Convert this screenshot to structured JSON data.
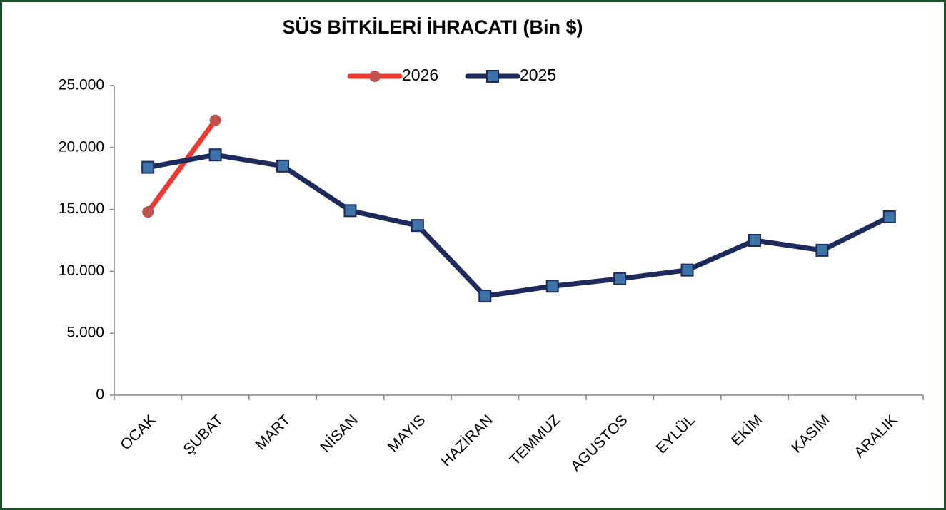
{
  "chart_data": {
    "type": "line",
    "title": "SÜS BİTKİLERİ İHRACATI (Bin $)",
    "categories": [
      "OCAK",
      "ŞUBAT",
      "MART",
      "NİSAN",
      "MAYIS",
      "HAZİRAN",
      "TEMMUZ",
      "AGUSTOS",
      "EYLÜL",
      "EKİM",
      "KASIM",
      "ARALIK"
    ],
    "series": [
      {
        "name": "2026",
        "color": "#ee3a2e",
        "marker": "circle",
        "marker_color": "#c0504d",
        "values": [
          14800,
          22200,
          null,
          null,
          null,
          null,
          null,
          null,
          null,
          null,
          null,
          null
        ]
      },
      {
        "name": "2025",
        "color": "#1f2a5c",
        "marker": "square",
        "marker_color": "#3d74a8",
        "values": [
          18400,
          19400,
          18500,
          14900,
          13700,
          8000,
          8800,
          9400,
          10100,
          12500,
          11700,
          14400
        ]
      }
    ],
    "ylim": [
      0,
      25000
    ],
    "yticks": [
      0,
      {
        "value": 5000,
        "label": "5.000"
      },
      {
        "value": 10000,
        "label": "10.000"
      },
      {
        "value": 15000,
        "label": "15.000"
      },
      {
        "value": 20000,
        "label": "20.000"
      },
      {
        "value": 25000,
        "label": "25.000"
      }
    ],
    "grid": false,
    "legend": "top"
  }
}
